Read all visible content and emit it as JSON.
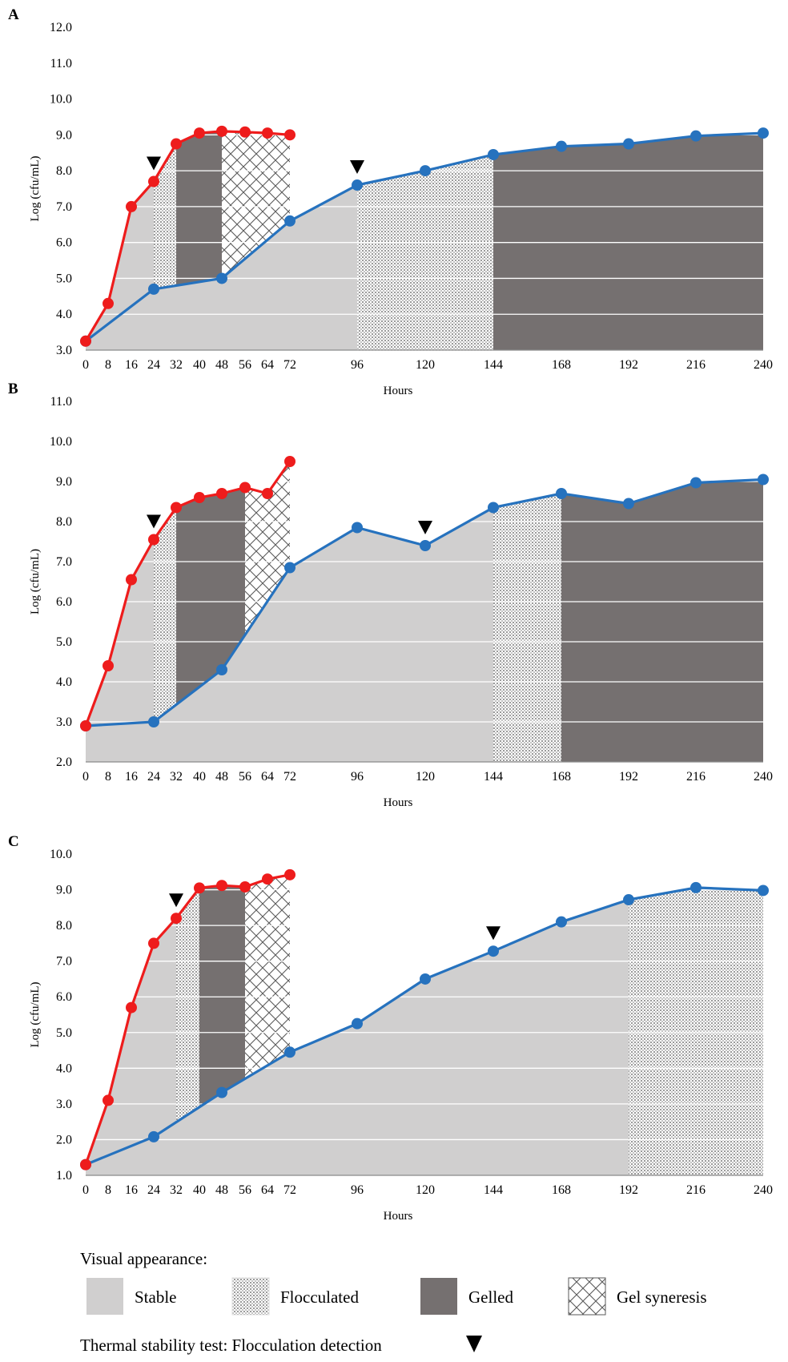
{
  "colors": {
    "stable": "#d0cfcf",
    "gelled": "#757070",
    "red_series": "#ee1c1c",
    "blue_series": "#2672be",
    "grid": "#ffffff"
  },
  "x_tick_labels": [
    "0",
    "8",
    "16",
    "24",
    "32",
    "40",
    "48",
    "56",
    "64",
    "72",
    "96",
    "120",
    "144",
    "168",
    "192",
    "216",
    "240"
  ],
  "chart_data": [
    {
      "panel": "A",
      "type": "line",
      "xlabel": "Hours",
      "ylabel": "Log (cfu/mL)",
      "ylim": [
        3.0,
        12.0
      ],
      "yticks": [
        "3.0",
        "4.0",
        "5.0",
        "6.0",
        "7.0",
        "8.0",
        "9.0",
        "10.0",
        "11.0",
        "12.0"
      ],
      "x_ticks": [
        0,
        8,
        16,
        24,
        32,
        40,
        48,
        56,
        64,
        72,
        96,
        120,
        144,
        168,
        192,
        216,
        240
      ],
      "series": [
        {
          "color": "red",
          "x": [
            0,
            8,
            16,
            24,
            32,
            40,
            48,
            56,
            64,
            72
          ],
          "y": [
            3.25,
            4.3,
            7.0,
            7.7,
            8.75,
            9.05,
            9.1,
            9.08,
            9.05,
            9.0
          ]
        },
        {
          "color": "blue",
          "x": [
            0,
            24,
            48,
            72,
            96,
            120,
            144,
            168,
            192,
            216,
            240
          ],
          "y": [
            3.25,
            4.7,
            5.0,
            6.6,
            7.6,
            8.0,
            8.45,
            8.68,
            8.75,
            8.97,
            9.05
          ]
        }
      ],
      "regions": [
        {
          "appearance": "Stable",
          "from": 0,
          "to": 24,
          "series": "red"
        },
        {
          "appearance": "Flocculated",
          "from": 24,
          "to": 32,
          "series": "red"
        },
        {
          "appearance": "Gelled",
          "from": 32,
          "to": 48,
          "series": "red"
        },
        {
          "appearance": "Gel syneresis",
          "from": 48,
          "to": 72,
          "series": "red"
        },
        {
          "appearance": "Stable",
          "from": 0,
          "to": 96,
          "series": "blue"
        },
        {
          "appearance": "Flocculated",
          "from": 96,
          "to": 144,
          "series": "blue"
        },
        {
          "appearance": "Gelled",
          "from": 144,
          "to": 240,
          "series": "blue"
        }
      ],
      "flocculation_markers": [
        {
          "x": 24,
          "series": "red"
        },
        {
          "x": 96,
          "series": "blue"
        }
      ]
    },
    {
      "panel": "B",
      "type": "line",
      "xlabel": "Hours",
      "ylabel": "Log (cfu/mL)",
      "ylim": [
        2.0,
        11.0
      ],
      "yticks": [
        "2.0",
        "3.0",
        "4.0",
        "5.0",
        "6.0",
        "7.0",
        "8.0",
        "9.0",
        "10.0",
        "11.0"
      ],
      "x_ticks": [
        0,
        8,
        16,
        24,
        32,
        40,
        48,
        56,
        64,
        72,
        96,
        120,
        144,
        168,
        192,
        216,
        240
      ],
      "series": [
        {
          "color": "red",
          "x": [
            0,
            8,
            16,
            24,
            32,
            40,
            48,
            56,
            64,
            72
          ],
          "y": [
            2.9,
            4.4,
            6.55,
            7.55,
            8.35,
            8.6,
            8.7,
            8.85,
            8.7,
            9.5
          ]
        },
        {
          "color": "blue",
          "x": [
            0,
            24,
            48,
            72,
            96,
            120,
            144,
            168,
            192,
            216,
            240
          ],
          "y": [
            2.9,
            3.0,
            4.3,
            6.85,
            7.85,
            7.4,
            8.35,
            8.7,
            8.45,
            8.97,
            9.05
          ]
        }
      ],
      "regions": [
        {
          "appearance": "Stable",
          "from": 0,
          "to": 24,
          "series": "red"
        },
        {
          "appearance": "Flocculated",
          "from": 24,
          "to": 32,
          "series": "red"
        },
        {
          "appearance": "Gelled",
          "from": 32,
          "to": 56,
          "series": "red"
        },
        {
          "appearance": "Gel syneresis",
          "from": 56,
          "to": 72,
          "series": "red"
        },
        {
          "appearance": "Stable",
          "from": 0,
          "to": 144,
          "series": "blue"
        },
        {
          "appearance": "Flocculated",
          "from": 144,
          "to": 168,
          "series": "blue"
        },
        {
          "appearance": "Gelled",
          "from": 168,
          "to": 240,
          "series": "blue"
        }
      ],
      "flocculation_markers": [
        {
          "x": 24,
          "series": "red"
        },
        {
          "x": 120,
          "series": "blue"
        }
      ]
    },
    {
      "panel": "C",
      "type": "line",
      "xlabel": "Hours",
      "ylabel": "Log (cfu/mL)",
      "ylim": [
        1.0,
        10.0
      ],
      "yticks": [
        "1.0",
        "2.0",
        "3.0",
        "4.0",
        "5.0",
        "6.0",
        "7.0",
        "8.0",
        "9.0",
        "10.0"
      ],
      "x_ticks": [
        0,
        8,
        16,
        24,
        32,
        40,
        48,
        56,
        64,
        72,
        96,
        120,
        144,
        168,
        192,
        216,
        240
      ],
      "series": [
        {
          "color": "red",
          "x": [
            0,
            8,
            16,
            24,
            32,
            40,
            48,
            56,
            64,
            72
          ],
          "y": [
            1.3,
            3.1,
            5.7,
            7.5,
            8.2,
            9.05,
            9.12,
            9.08,
            9.3,
            9.42
          ]
        },
        {
          "color": "blue",
          "x": [
            0,
            24,
            48,
            72,
            96,
            120,
            144,
            168,
            192,
            216,
            240
          ],
          "y": [
            1.3,
            2.08,
            3.32,
            4.45,
            5.25,
            6.5,
            7.28,
            8.1,
            8.72,
            9.06,
            8.98
          ]
        }
      ],
      "regions": [
        {
          "appearance": "Stable",
          "from": 0,
          "to": 32,
          "series": "red"
        },
        {
          "appearance": "Flocculated",
          "from": 32,
          "to": 40,
          "series": "red"
        },
        {
          "appearance": "Gelled",
          "from": 40,
          "to": 56,
          "series": "red"
        },
        {
          "appearance": "Gel syneresis",
          "from": 56,
          "to": 72,
          "series": "red"
        },
        {
          "appearance": "Stable",
          "from": 0,
          "to": 192,
          "series": "blue"
        },
        {
          "appearance": "Flocculated",
          "from": 192,
          "to": 240,
          "series": "blue"
        }
      ],
      "flocculation_markers": [
        {
          "x": 32,
          "series": "red"
        },
        {
          "x": 144,
          "series": "blue"
        }
      ]
    }
  ],
  "legend": {
    "title": "Visual appearance:",
    "items": [
      {
        "key": "Stable",
        "label": "Stable"
      },
      {
        "key": "Flocculated",
        "label": "Flocculated"
      },
      {
        "key": "Gelled",
        "label": "Gelled"
      },
      {
        "key": "Gel syneresis",
        "label": "Gel syneresis"
      }
    ],
    "thermal_label": "Thermal stability test:  Flocculation detection"
  }
}
